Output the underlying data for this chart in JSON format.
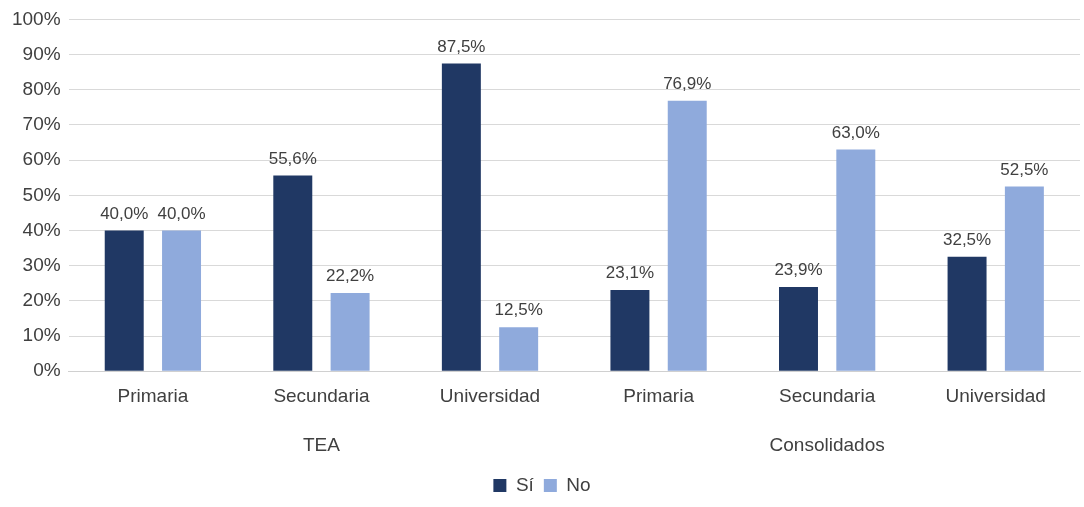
{
  "chart_data": {
    "type": "bar",
    "categories": [
      "Primaria",
      "Secundaria",
      "Universidad",
      "Primaria",
      "Secundaria",
      "Universidad"
    ],
    "series": [
      {
        "name": "Sí",
        "color": "#203864",
        "values": [
          40.0,
          55.6,
          87.5,
          23.1,
          23.9,
          32.5
        ],
        "value_labels": [
          "40,0%",
          "55,6%",
          "87,5%",
          "23,1%",
          "23,9%",
          "32,5%"
        ]
      },
      {
        "name": "No",
        "color": "#8faadc",
        "values": [
          40.0,
          22.2,
          12.5,
          76.9,
          63.0,
          52.5
        ],
        "value_labels": [
          "40,0%",
          "22,2%",
          "12,5%",
          "76,9%",
          "63,0%",
          "52,5%"
        ]
      }
    ],
    "ylim": [
      0,
      100
    ],
    "yticks": [
      {
        "value": 0,
        "label": "0%"
      },
      {
        "value": 10,
        "label": "10%"
      },
      {
        "value": 20,
        "label": "20%"
      },
      {
        "value": 30,
        "label": "30%"
      },
      {
        "value": 40,
        "label": "40%"
      },
      {
        "value": 50,
        "label": "50%"
      },
      {
        "value": 60,
        "label": "60%"
      },
      {
        "value": 70,
        "label": "70%"
      },
      {
        "value": 80,
        "label": "80%"
      },
      {
        "value": 90,
        "label": "90%"
      },
      {
        "value": 100,
        "label": "100%"
      }
    ],
    "annotations": [
      "TEA",
      "Consolidados"
    ],
    "grid": "y",
    "legend": "bottom"
  }
}
